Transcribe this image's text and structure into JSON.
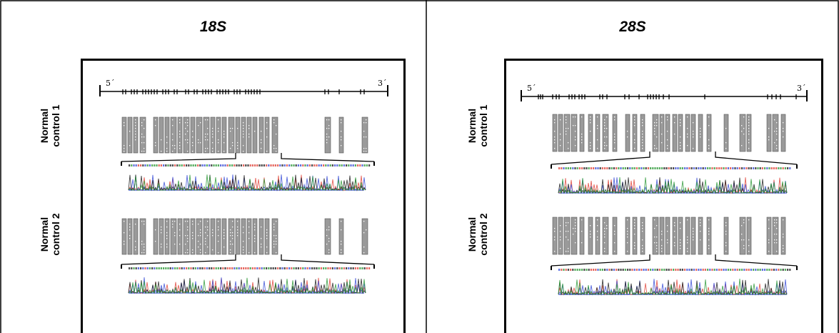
{
  "panels": [
    {
      "title": "18S",
      "axis_start": "5´",
      "axis_end": "3´",
      "rows": [
        {
          "label_line1": "Normal",
          "label_line2": "control 1"
        },
        {
          "label_line1": "Normal",
          "label_line2": "control 2"
        }
      ]
    },
    {
      "title": "28S",
      "axis_start": "5´",
      "axis_end": "3´",
      "rows": [
        {
          "label_line1": "Normal",
          "label_line2": "control 1"
        },
        {
          "label_line1": "Normal",
          "label_line2": "control 2"
        }
      ]
    }
  ],
  "colors": {
    "border": "#000000",
    "block_fill": "#9a9a9a",
    "block_dot": "#ffffff",
    "seq_red": "#e0463c",
    "seq_blue": "#3b4fd6",
    "seq_green": "#2f9a3a",
    "seq_black": "#222222"
  }
}
